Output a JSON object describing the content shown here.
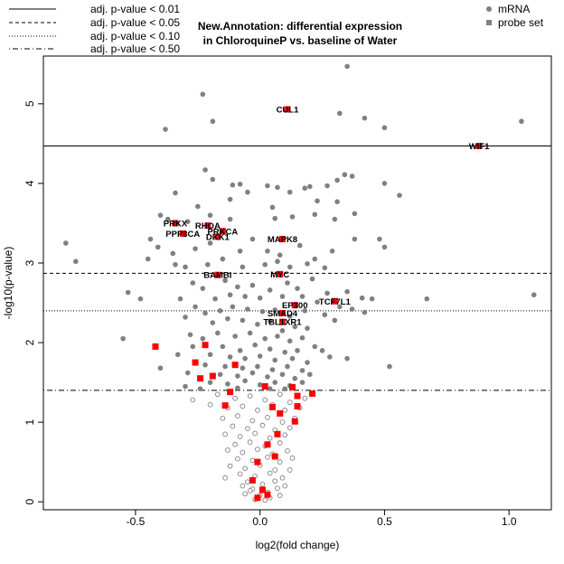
{
  "chart_data": {
    "type": "scatter",
    "title_lines": [
      "New.Annotation: differential expression",
      "in ChloroquineP vs. baseline of Water"
    ],
    "xlabel": "log2(fold change)",
    "ylabel": "-log10(p-value)",
    "xlim": [
      -0.87,
      1.17
    ],
    "ylim": [
      -0.1,
      5.6
    ],
    "xticks": [
      "-0.5",
      "0.0",
      "0.5",
      "1.0"
    ],
    "xtick_values": [
      -0.5,
      0.0,
      0.5,
      1.0
    ],
    "yticks": [
      "0",
      "1",
      "2",
      "3",
      "4",
      "5"
    ],
    "ytick_values": [
      0,
      1,
      2,
      3,
      4,
      5
    ],
    "legend_lines": {
      "placement": "top-left",
      "entries": [
        {
          "label": "adj. p-value < 0.01",
          "style": "solid",
          "y": 4.47
        },
        {
          "label": "adj. p-value < 0.05",
          "style": "dashed",
          "y": 2.87
        },
        {
          "label": "adj. p-value < 0.10",
          "style": "dotted",
          "y": 2.4
        },
        {
          "label": "adj. p-value < 0.50",
          "style": "dotdash",
          "y": 1.4
        }
      ]
    },
    "legend_points": {
      "placement": "top-right",
      "entries": [
        {
          "label": "mRNA",
          "marker": "circle",
          "color": "#808080"
        },
        {
          "label": "probe set",
          "marker": "square",
          "color": "#808080"
        }
      ]
    },
    "colors": {
      "mrna_filled": "#808080",
      "mrna_open": "#808080",
      "probe_set": "#ff0000",
      "line": "#000000"
    },
    "probe_sets": [
      {
        "label": "CUL1",
        "x": 0.11,
        "y": 4.93
      },
      {
        "label": "WIF1",
        "x": 0.88,
        "y": 4.47
      },
      {
        "label": "PRKX",
        "x": -0.34,
        "y": 3.5
      },
      {
        "label": "PPP3CA",
        "x": -0.31,
        "y": 3.37
      },
      {
        "label": "RHOA",
        "x": -0.21,
        "y": 3.47
      },
      {
        "label": "PRKCA",
        "x": -0.15,
        "y": 3.4
      },
      {
        "label": "DKK1",
        "x": -0.17,
        "y": 3.33
      },
      {
        "label": "MAPK8",
        "x": 0.09,
        "y": 3.3
      },
      {
        "label": "MYC",
        "x": 0.08,
        "y": 2.86
      },
      {
        "label": "BAMBI",
        "x": -0.17,
        "y": 2.85
      },
      {
        "label": "TCF7L1",
        "x": 0.3,
        "y": 2.52
      },
      {
        "label": "EP300",
        "x": 0.14,
        "y": 2.47
      },
      {
        "label": "SMAD4",
        "x": 0.09,
        "y": 2.37
      },
      {
        "label": "TBL1XR1",
        "x": 0.09,
        "y": 2.26
      },
      {
        "label": "",
        "x": -0.42,
        "y": 1.95
      },
      {
        "label": "",
        "x": -0.22,
        "y": 1.97
      },
      {
        "label": "",
        "x": -0.26,
        "y": 1.75
      },
      {
        "label": "",
        "x": -0.19,
        "y": 1.58
      },
      {
        "label": "",
        "x": -0.24,
        "y": 1.55
      },
      {
        "label": "",
        "x": -0.1,
        "y": 1.72
      },
      {
        "label": "",
        "x": -0.12,
        "y": 1.38
      },
      {
        "label": "",
        "x": -0.14,
        "y": 1.21
      },
      {
        "label": "",
        "x": 0.02,
        "y": 1.45
      },
      {
        "label": "",
        "x": 0.13,
        "y": 1.44
      },
      {
        "label": "",
        "x": 0.21,
        "y": 1.36
      },
      {
        "label": "",
        "x": 0.15,
        "y": 1.33
      },
      {
        "label": "",
        "x": 0.15,
        "y": 1.2
      },
      {
        "label": "",
        "x": 0.05,
        "y": 1.19
      },
      {
        "label": "",
        "x": 0.08,
        "y": 1.11
      },
      {
        "label": "",
        "x": 0.14,
        "y": 1.01
      },
      {
        "label": "",
        "x": 0.07,
        "y": 0.85
      },
      {
        "label": "",
        "x": 0.03,
        "y": 0.72
      },
      {
        "label": "",
        "x": 0.06,
        "y": 0.57
      },
      {
        "label": "",
        "x": -0.01,
        "y": 0.5
      },
      {
        "label": "",
        "x": -0.03,
        "y": 0.27
      },
      {
        "label": "",
        "x": 0.01,
        "y": 0.15
      },
      {
        "label": "",
        "x": 0.03,
        "y": 0.09
      },
      {
        "label": "",
        "x": -0.01,
        "y": 0.05
      }
    ],
    "mrna_filled": [
      [
        0.35,
        5.47
      ],
      [
        -0.23,
        5.12
      ],
      [
        0.32,
        4.88
      ],
      [
        0.42,
        4.82
      ],
      [
        1.05,
        4.78
      ],
      [
        -0.19,
        4.78
      ],
      [
        0.5,
        4.7
      ],
      [
        -0.38,
        4.68
      ],
      [
        -0.22,
        4.17
      ],
      [
        0.34,
        4.11
      ],
      [
        0.37,
        4.09
      ],
      [
        0.31,
        4.04
      ],
      [
        0.2,
        3.96
      ],
      [
        0.27,
        3.97
      ],
      [
        -0.19,
        4.05
      ],
      [
        -0.08,
        3.99
      ],
      [
        -0.11,
        3.98
      ],
      [
        0.03,
        3.97
      ],
      [
        0.07,
        3.95
      ],
      [
        -0.34,
        3.88
      ],
      [
        -0.05,
        3.89
      ],
      [
        0.12,
        3.89
      ],
      [
        0.18,
        3.94
      ],
      [
        0.56,
        3.85
      ],
      [
        0.5,
        4.0
      ],
      [
        -0.12,
        3.8
      ],
      [
        0.05,
        3.7
      ],
      [
        0.23,
        3.78
      ],
      [
        0.31,
        3.77
      ],
      [
        -0.25,
        3.71
      ],
      [
        -0.4,
        3.6
      ],
      [
        -0.37,
        3.55
      ],
      [
        -0.29,
        3.52
      ],
      [
        -0.2,
        3.6
      ],
      [
        -0.12,
        3.55
      ],
      [
        0.06,
        3.56
      ],
      [
        0.13,
        3.58
      ],
      [
        0.22,
        3.61
      ],
      [
        0.3,
        3.55
      ],
      [
        0.38,
        3.62
      ],
      [
        -0.78,
        3.25
      ],
      [
        -0.74,
        3.02
      ],
      [
        -0.44,
        3.3
      ],
      [
        -0.41,
        3.2
      ],
      [
        -0.35,
        3.12
      ],
      [
        -0.26,
        3.18
      ],
      [
        -0.2,
        3.25
      ],
      [
        -0.08,
        3.15
      ],
      [
        -0.03,
        3.3
      ],
      [
        0.03,
        3.15
      ],
      [
        0.08,
        3.1
      ],
      [
        0.16,
        3.22
      ],
      [
        0.22,
        3.05
      ],
      [
        0.29,
        3.15
      ],
      [
        0.38,
        3.3
      ],
      [
        0.48,
        3.3
      ],
      [
        0.5,
        3.2
      ],
      [
        -0.45,
        3.05
      ],
      [
        -0.34,
        2.98
      ],
      [
        -0.3,
        2.95
      ],
      [
        -0.21,
        2.98
      ],
      [
        -0.15,
        3.05
      ],
      [
        -0.07,
        2.95
      ],
      [
        0.02,
        2.98
      ],
      [
        0.07,
        3.02
      ],
      [
        0.12,
        2.95
      ],
      [
        0.19,
        2.99
      ],
      [
        0.26,
        2.94
      ],
      [
        -0.27,
        2.75
      ],
      [
        -0.23,
        2.68
      ],
      [
        -0.14,
        2.78
      ],
      [
        -0.09,
        2.7
      ],
      [
        -0.03,
        2.72
      ],
      [
        0.04,
        2.66
      ],
      [
        0.11,
        2.75
      ],
      [
        0.15,
        2.68
      ],
      [
        0.21,
        2.8
      ],
      [
        0.27,
        2.62
      ],
      [
        0.35,
        2.64
      ],
      [
        0.41,
        2.56
      ],
      [
        0.45,
        2.55
      ],
      [
        0.67,
        2.55
      ],
      [
        1.1,
        2.6
      ],
      [
        -0.53,
        2.63
      ],
      [
        -0.48,
        2.55
      ],
      [
        -0.32,
        2.55
      ],
      [
        -0.18,
        2.55
      ],
      [
        -0.12,
        2.6
      ],
      [
        -0.06,
        2.58
      ],
      [
        0.0,
        2.56
      ],
      [
        0.09,
        2.58
      ],
      [
        0.17,
        2.58
      ],
      [
        0.23,
        2.51
      ],
      [
        0.32,
        2.45
      ],
      [
        0.37,
        2.42
      ],
      [
        -0.26,
        2.45
      ],
      [
        -0.22,
        2.37
      ],
      [
        -0.16,
        2.4
      ],
      [
        -0.11,
        2.45
      ],
      [
        -0.05,
        2.42
      ],
      [
        0.01,
        2.39
      ],
      [
        0.06,
        2.41
      ],
      [
        0.12,
        2.33
      ],
      [
        0.18,
        2.4
      ],
      [
        0.26,
        2.35
      ],
      [
        -0.3,
        2.32
      ],
      [
        -0.19,
        2.25
      ],
      [
        -0.13,
        2.3
      ],
      [
        -0.07,
        2.28
      ],
      [
        -0.01,
        2.23
      ],
      [
        0.04,
        2.27
      ],
      [
        0.09,
        2.15
      ],
      [
        0.14,
        2.2
      ],
      [
        0.19,
        2.18
      ],
      [
        0.3,
        2.28
      ],
      [
        0.42,
        2.38
      ],
      [
        -0.55,
        2.05
      ],
      [
        -0.28,
        2.1
      ],
      [
        -0.23,
        2.05
      ],
      [
        -0.17,
        2.12
      ],
      [
        -0.1,
        2.08
      ],
      [
        -0.04,
        2.12
      ],
      [
        0.02,
        2.05
      ],
      [
        0.07,
        2.08
      ],
      [
        0.12,
        2.02
      ],
      [
        0.17,
        2.06
      ],
      [
        0.22,
        1.95
      ],
      [
        -0.27,
        1.95
      ],
      [
        -0.15,
        1.95
      ],
      [
        -0.08,
        1.9
      ],
      [
        -0.02,
        1.97
      ],
      [
        0.04,
        1.92
      ],
      [
        0.1,
        1.88
      ],
      [
        0.15,
        1.9
      ],
      [
        0.25,
        1.9
      ],
      [
        -0.33,
        1.85
      ],
      [
        -0.2,
        1.85
      ],
      [
        -0.12,
        1.82
      ],
      [
        -0.06,
        1.8
      ],
      [
        0.0,
        1.83
      ],
      [
        0.06,
        1.78
      ],
      [
        0.13,
        1.8
      ],
      [
        0.19,
        1.75
      ],
      [
        0.28,
        1.82
      ],
      [
        0.35,
        1.8
      ],
      [
        -0.22,
        1.72
      ],
      [
        -0.14,
        1.7
      ],
      [
        -0.07,
        1.68
      ],
      [
        -0.01,
        1.7
      ],
      [
        0.05,
        1.66
      ],
      [
        0.11,
        1.7
      ],
      [
        0.17,
        1.65
      ],
      [
        -0.4,
        1.68
      ],
      [
        0.52,
        1.7
      ],
      [
        -0.29,
        1.62
      ],
      [
        -0.16,
        1.6
      ],
      [
        -0.09,
        1.58
      ],
      [
        -0.03,
        1.62
      ],
      [
        0.03,
        1.57
      ],
      [
        0.09,
        1.6
      ],
      [
        0.14,
        1.55
      ],
      [
        0.2,
        1.6
      ],
      [
        -0.2,
        1.5
      ],
      [
        -0.13,
        1.48
      ],
      [
        -0.06,
        1.52
      ],
      [
        0.0,
        1.47
      ],
      [
        0.06,
        1.5
      ],
      [
        0.12,
        1.46
      ],
      [
        0.17,
        1.5
      ],
      [
        -0.3,
        1.45
      ],
      [
        -0.09,
        1.43
      ],
      [
        0.04,
        1.42
      ],
      [
        0.1,
        1.42
      ],
      [
        -0.24,
        1.42
      ]
    ],
    "mrna_open": [
      [
        -0.27,
        1.28
      ],
      [
        -0.17,
        1.35
      ],
      [
        -0.1,
        1.3
      ],
      [
        -0.04,
        1.33
      ],
      [
        0.02,
        1.28
      ],
      [
        0.08,
        1.35
      ],
      [
        0.12,
        1.25
      ],
      [
        0.18,
        1.3
      ],
      [
        -0.2,
        1.22
      ],
      [
        -0.13,
        1.18
      ],
      [
        -0.07,
        1.2
      ],
      [
        -0.01,
        1.15
      ],
      [
        0.05,
        1.22
      ],
      [
        0.1,
        1.15
      ],
      [
        0.16,
        1.18
      ],
      [
        -0.15,
        1.05
      ],
      [
        -0.09,
        1.08
      ],
      [
        -0.03,
        1.02
      ],
      [
        0.03,
        1.06
      ],
      [
        0.09,
        1.0
      ],
      [
        0.14,
        1.05
      ],
      [
        -0.11,
        0.95
      ],
      [
        -0.05,
        0.92
      ],
      [
        0.01,
        0.96
      ],
      [
        0.06,
        0.9
      ],
      [
        0.12,
        0.93
      ],
      [
        -0.14,
        0.85
      ],
      [
        -0.08,
        0.82
      ],
      [
        -0.02,
        0.86
      ],
      [
        0.04,
        0.8
      ],
      [
        0.1,
        0.84
      ],
      [
        -0.1,
        0.72
      ],
      [
        -0.04,
        0.75
      ],
      [
        0.02,
        0.7
      ],
      [
        0.08,
        0.74
      ],
      [
        -0.13,
        0.65
      ],
      [
        -0.07,
        0.62
      ],
      [
        -0.01,
        0.66
      ],
      [
        0.05,
        0.6
      ],
      [
        0.11,
        0.64
      ],
      [
        -0.09,
        0.54
      ],
      [
        -0.03,
        0.52
      ],
      [
        0.03,
        0.56
      ],
      [
        0.08,
        0.5
      ],
      [
        -0.12,
        0.45
      ],
      [
        -0.06,
        0.42
      ],
      [
        0.0,
        0.46
      ],
      [
        0.06,
        0.4
      ],
      [
        -0.08,
        0.35
      ],
      [
        -0.02,
        0.32
      ],
      [
        0.04,
        0.36
      ],
      [
        0.09,
        0.3
      ],
      [
        -0.05,
        0.25
      ],
      [
        0.01,
        0.22
      ],
      [
        0.06,
        0.26
      ],
      [
        -0.03,
        0.16
      ],
      [
        0.03,
        0.12
      ],
      [
        0.07,
        0.17
      ],
      [
        -0.06,
        0.1
      ],
      [
        0.0,
        0.08
      ],
      [
        0.04,
        0.05
      ],
      [
        -0.02,
        0.03
      ],
      [
        0.02,
        0.02
      ],
      [
        0.08,
        0.08
      ],
      [
        -0.04,
        0.14
      ],
      [
        0.1,
        0.2
      ],
      [
        -0.07,
        0.2
      ],
      [
        0.12,
        0.4
      ],
      [
        -0.14,
        0.3
      ],
      [
        0.13,
        0.55
      ]
    ]
  }
}
